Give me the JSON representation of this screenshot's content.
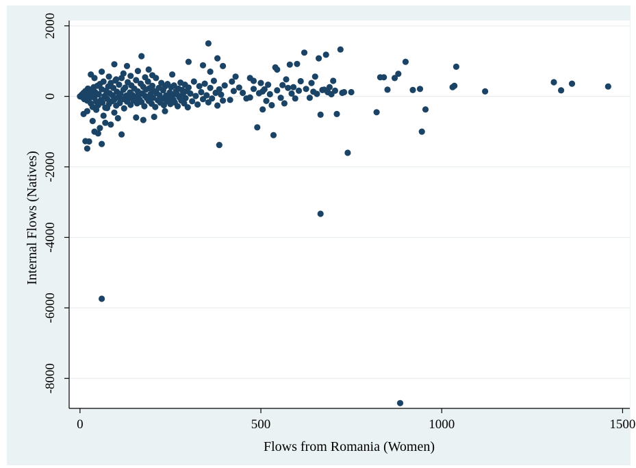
{
  "chart_data": {
    "type": "scatter",
    "title": "",
    "xlabel": "Flows from Romania (Women)",
    "ylabel": "Internal Flows (Natives)",
    "xlim": [
      -30,
      1520
    ],
    "ylim": [
      -8850,
      2150
    ],
    "xticks": [
      0,
      500,
      1000,
      1500
    ],
    "xtick_labels": [
      "0",
      "500",
      "1000",
      "1500"
    ],
    "yticks": [
      2000,
      0,
      -2000,
      -4000,
      -6000,
      -8000
    ],
    "ytick_labels": [
      "2000",
      "0",
      "-2000",
      "-4000",
      "-6000",
      "-8000"
    ],
    "grid": "horizontal",
    "legend": "none",
    "colors": {
      "marker": "#1b4365",
      "background": "#eaf2f3",
      "plot_area": "#ffffff",
      "grid": "#e9eef0"
    },
    "series": [
      {
        "points": [
          [
            0,
            0
          ],
          [
            5,
            50
          ],
          [
            8,
            -30
          ],
          [
            10,
            100
          ],
          [
            12,
            -80
          ],
          [
            15,
            150
          ],
          [
            18,
            40
          ],
          [
            20,
            -120
          ],
          [
            22,
            220
          ],
          [
            25,
            -60
          ],
          [
            28,
            180
          ],
          [
            30,
            -200
          ],
          [
            32,
            80
          ],
          [
            35,
            -300
          ],
          [
            38,
            260
          ],
          [
            40,
            -40
          ],
          [
            42,
            120
          ],
          [
            45,
            -150
          ],
          [
            48,
            300
          ],
          [
            50,
            -250
          ],
          [
            52,
            60
          ],
          [
            55,
            350
          ],
          [
            58,
            -100
          ],
          [
            60,
            200
          ],
          [
            62,
            -180
          ],
          [
            65,
            420
          ],
          [
            68,
            10
          ],
          [
            70,
            -320
          ],
          [
            72,
            160
          ],
          [
            75,
            -70
          ],
          [
            78,
            280
          ],
          [
            80,
            -220
          ],
          [
            82,
            90
          ],
          [
            85,
            380
          ],
          [
            88,
            -140
          ],
          [
            90,
            30
          ],
          [
            92,
            240
          ],
          [
            95,
            -90
          ],
          [
            98,
            450
          ],
          [
            100,
            -260
          ],
          [
            102,
            130
          ],
          [
            105,
            -30
          ],
          [
            108,
            330
          ],
          [
            110,
            -190
          ],
          [
            112,
            70
          ],
          [
            115,
            520
          ],
          [
            118,
            -80
          ],
          [
            120,
            190
          ],
          [
            122,
            -340
          ],
          [
            125,
            250
          ],
          [
            128,
            20
          ],
          [
            130,
            -150
          ],
          [
            132,
            400
          ],
          [
            135,
            -60
          ],
          [
            138,
            110
          ],
          [
            140,
            -240
          ],
          [
            142,
            310
          ],
          [
            145,
            40
          ],
          [
            148,
            -120
          ],
          [
            150,
            220
          ],
          [
            152,
            -30
          ],
          [
            155,
            460
          ],
          [
            158,
            -200
          ],
          [
            160,
            140
          ],
          [
            162,
            50
          ],
          [
            165,
            -90
          ],
          [
            168,
            360
          ],
          [
            170,
            -160
          ],
          [
            172,
            80
          ],
          [
            175,
            270
          ],
          [
            178,
            -280
          ],
          [
            180,
            10
          ],
          [
            182,
            190
          ],
          [
            185,
            -50
          ],
          [
            188,
            420
          ],
          [
            190,
            -130
          ],
          [
            192,
            230
          ],
          [
            195,
            60
          ],
          [
            198,
            -210
          ],
          [
            200,
            300
          ],
          [
            202,
            -40
          ],
          [
            205,
            150
          ],
          [
            208,
            -300
          ],
          [
            210,
            520
          ],
          [
            212,
            90
          ],
          [
            215,
            -110
          ],
          [
            218,
            240
          ],
          [
            220,
            30
          ],
          [
            222,
            -180
          ],
          [
            225,
            380
          ],
          [
            228,
            -70
          ],
          [
            230,
            170
          ],
          [
            232,
            -250
          ],
          [
            235,
            280
          ],
          [
            238,
            20
          ],
          [
            240,
            -140
          ],
          [
            242,
            350
          ],
          [
            245,
            -60
          ],
          [
            248,
            110
          ],
          [
            250,
            -220
          ],
          [
            252,
            260
          ],
          [
            255,
            40
          ],
          [
            258,
            -90
          ],
          [
            260,
            310
          ],
          [
            262,
            -170
          ],
          [
            265,
            140
          ],
          [
            268,
            60
          ],
          [
            270,
            -280
          ],
          [
            272,
            220
          ],
          [
            275,
            -30
          ],
          [
            278,
            390
          ],
          [
            280,
            -120
          ],
          [
            282,
            180
          ],
          [
            285,
            70
          ],
          [
            288,
            -200
          ],
          [
            290,
            330
          ],
          [
            292,
            -50
          ],
          [
            295,
            150
          ],
          [
            298,
            -310
          ],
          [
            300,
            250
          ],
          [
            305,
            80
          ],
          [
            310,
            -140
          ],
          [
            315,
            420
          ],
          [
            320,
            10
          ],
          [
            325,
            -230
          ],
          [
            330,
            290
          ],
          [
            335,
            120
          ],
          [
            340,
            -80
          ],
          [
            345,
            360
          ],
          [
            350,
            30
          ],
          [
            355,
            -170
          ],
          [
            360,
            240
          ],
          [
            365,
            -60
          ],
          [
            370,
            440
          ],
          [
            375,
            100
          ],
          [
            380,
            -260
          ],
          [
            385,
            200
          ],
          [
            390,
            50
          ],
          [
            395,
            -120
          ],
          [
            400,
            310
          ],
          [
            10,
            -500
          ],
          [
            20,
            -420
          ],
          [
            35,
            -700
          ],
          [
            45,
            -380
          ],
          [
            55,
            -900
          ],
          [
            65,
            -550
          ],
          [
            75,
            -330
          ],
          [
            85,
            -800
          ],
          [
            95,
            -460
          ],
          [
            105,
            -620
          ],
          [
            30,
            620
          ],
          [
            40,
            520
          ],
          [
            60,
            700
          ],
          [
            80,
            560
          ],
          [
            100,
            480
          ],
          [
            120,
            650
          ],
          [
            140,
            580
          ],
          [
            160,
            720
          ],
          [
            180,
            540
          ],
          [
            200,
            600
          ],
          [
            25,
            -1280
          ],
          [
            40,
            -1000
          ],
          [
            60,
            -1350
          ],
          [
            115,
            -1080
          ],
          [
            155,
            -600
          ],
          [
            175,
            -670
          ],
          [
            205,
            -580
          ],
          [
            235,
            -420
          ],
          [
            20,
            -1480
          ],
          [
            15,
            -1270
          ],
          [
            50,
            -1050
          ],
          [
            70,
            -750
          ],
          [
            95,
            910
          ],
          [
            130,
            860
          ],
          [
            170,
            1140
          ],
          [
            190,
            760
          ],
          [
            255,
            620
          ],
          [
            300,
            980
          ],
          [
            355,
            1500
          ],
          [
            380,
            1080
          ],
          [
            385,
            -1380
          ],
          [
            395,
            860
          ],
          [
            340,
            880
          ],
          [
            360,
            700
          ],
          [
            420,
            420
          ],
          [
            430,
            560
          ],
          [
            470,
            520
          ],
          [
            480,
            440
          ],
          [
            490,
            -880
          ],
          [
            500,
            380
          ],
          [
            505,
            -370
          ],
          [
            510,
            200
          ],
          [
            520,
            330
          ],
          [
            530,
            -250
          ],
          [
            535,
            -1100
          ],
          [
            540,
            820
          ],
          [
            545,
            760
          ],
          [
            560,
            320
          ],
          [
            565,
            -200
          ],
          [
            570,
            480
          ],
          [
            580,
            900
          ],
          [
            590,
            260
          ],
          [
            600,
            920
          ],
          [
            610,
            430
          ],
          [
            620,
            1240
          ],
          [
            640,
            380
          ],
          [
            650,
            560
          ],
          [
            660,
            1080
          ],
          [
            670,
            180
          ],
          [
            680,
            1180
          ],
          [
            690,
            260
          ],
          [
            700,
            440
          ],
          [
            710,
            -500
          ],
          [
            720,
            1330
          ],
          [
            730,
            120
          ],
          [
            740,
            -1600
          ],
          [
            750,
            120
          ],
          [
            665,
            -3330
          ],
          [
            60,
            -5740
          ],
          [
            885,
            -8700
          ],
          [
            830,
            540
          ],
          [
            840,
            540
          ],
          [
            850,
            190
          ],
          [
            820,
            -450
          ],
          [
            870,
            520
          ],
          [
            880,
            640
          ],
          [
            900,
            980
          ],
          [
            920,
            180
          ],
          [
            940,
            210
          ],
          [
            945,
            -1000
          ],
          [
            955,
            -370
          ],
          [
            1030,
            260
          ],
          [
            1035,
            300
          ],
          [
            1040,
            840
          ],
          [
            1120,
            140
          ],
          [
            1310,
            400
          ],
          [
            1330,
            170
          ],
          [
            1360,
            360
          ],
          [
            1460,
            280
          ],
          [
            450,
            100
          ],
          [
            460,
            -60
          ],
          [
            440,
            250
          ],
          [
            415,
            -100
          ],
          [
            425,
            150
          ],
          [
            470,
            -30
          ],
          [
            480,
            210
          ],
          [
            495,
            90
          ],
          [
            505,
            140
          ],
          [
            515,
            -130
          ],
          [
            525,
            60
          ],
          [
            545,
            170
          ],
          [
            555,
            -40
          ],
          [
            575,
            240
          ],
          [
            585,
            80
          ],
          [
            595,
            -60
          ],
          [
            605,
            160
          ],
          [
            625,
            210
          ],
          [
            635,
            -40
          ],
          [
            645,
            130
          ],
          [
            655,
            70
          ],
          [
            665,
            -520
          ],
          [
            675,
            190
          ],
          [
            685,
            120
          ],
          [
            695,
            60
          ],
          [
            705,
            160
          ],
          [
            725,
            100
          ]
        ]
      }
    ]
  }
}
